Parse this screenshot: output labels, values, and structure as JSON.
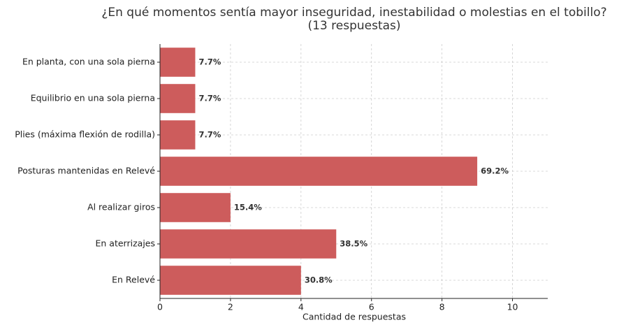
{
  "chart_data": {
    "type": "barh",
    "title": "¿En qué momentos sentía mayor inseguridad, inestabilidad o molestias en el tobillo?",
    "subtitle": "(13 respuestas)",
    "x_label": "Cantidad de respuestas",
    "categories": [
      "En planta, con una sola pierna",
      "Equilibrio en una sola pierna",
      "Plies (máxima flexión de rodilla)",
      "Posturas mantenidas en Relevé",
      "Al realizar giros",
      "En aterrizajes",
      "En Relevé"
    ],
    "values": [
      1,
      1,
      1,
      9,
      2,
      5,
      4
    ],
    "value_labels": [
      "7.7%",
      "7.7%",
      "7.7%",
      "69.2%",
      "15.4%",
      "38.5%",
      "30.8%"
    ],
    "color": "#cd5c5c",
    "xlim": [
      0,
      11
    ],
    "xticks": [
      0,
      2,
      4,
      6,
      8,
      10
    ],
    "grid": true
  }
}
